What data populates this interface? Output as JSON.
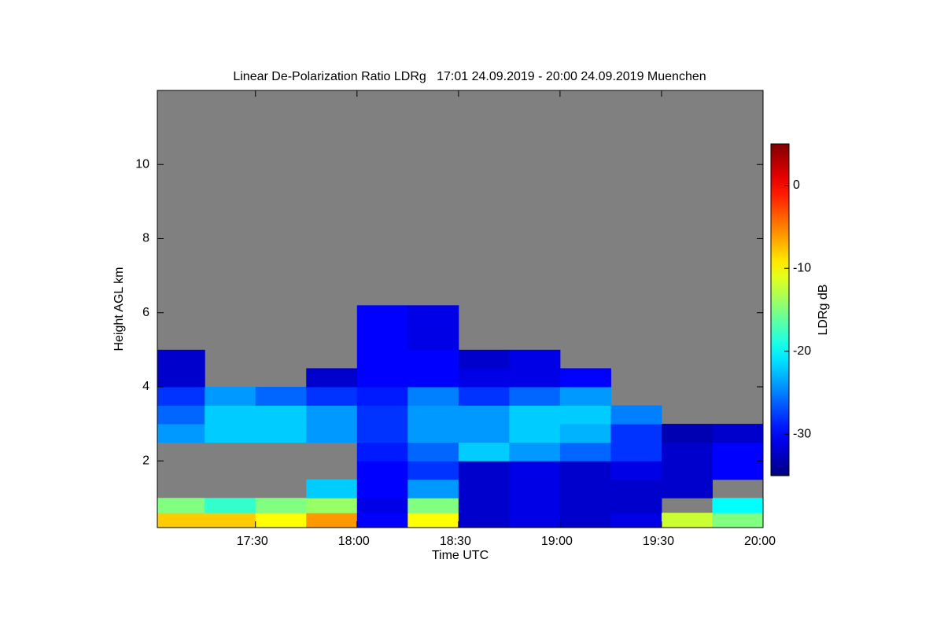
{
  "chart_data": {
    "type": "heatmap",
    "title": "Linear De-Polarization Ratio LDRg   17:01 24.09.2019 - 20:00 24.09.2019 Muenchen",
    "xlabel": "Time UTC",
    "ylabel": "Height AGL km",
    "colorbar_label": "LDRg dB",
    "colormap": "jet",
    "missing_color": "#808080",
    "xlim": [
      17.0167,
      20.0
    ],
    "xticks": [
      {
        "value": 17.5,
        "label": "17:30"
      },
      {
        "value": 18.0,
        "label": "18:00"
      },
      {
        "value": 18.5,
        "label": "18:30"
      },
      {
        "value": 19.0,
        "label": "19:00"
      },
      {
        "value": 19.5,
        "label": "19:30"
      },
      {
        "value": 20.0,
        "label": "20:00"
      }
    ],
    "ylim": [
      0.2,
      12.0
    ],
    "yticks": [
      2,
      4,
      6,
      8,
      10
    ],
    "clim": [
      -35,
      5
    ],
    "cticks": [
      0,
      -10,
      -20,
      -30
    ],
    "xbins": [
      17.0167,
      17.25,
      17.5,
      17.75,
      18.0,
      18.25,
      18.5,
      18.75,
      19.0,
      19.25,
      19.5,
      19.75,
      20.0
    ],
    "ybins": [
      0.2,
      0.6,
      1.0,
      1.5,
      2.0,
      2.5,
      3.0,
      3.5,
      4.0,
      4.5,
      5.0,
      5.5,
      6.2
    ],
    "z": [
      [
        -8,
        -8,
        -10,
        -6,
        -30,
        -10,
        -32,
        -31,
        -32,
        -31,
        -12,
        -15
      ],
      [
        -15,
        -18,
        -15,
        -14,
        -31,
        -15,
        -32,
        -31,
        -32,
        -32,
        null,
        -20
      ],
      [
        null,
        null,
        null,
        -22,
        -30,
        -24,
        -32,
        -31,
        -32,
        -32,
        -32,
        null
      ],
      [
        null,
        null,
        null,
        null,
        -30,
        -28,
        -32,
        -31,
        -32,
        -31,
        -32,
        -30
      ],
      [
        null,
        null,
        null,
        null,
        -29,
        -26,
        -22,
        -24,
        -26,
        -28,
        -32,
        -30
      ],
      [
        -24,
        -22,
        -22,
        -24,
        -28,
        -24,
        -24,
        -22,
        -23,
        -28,
        -33,
        -32
      ],
      [
        -26,
        -22,
        -22,
        -24,
        -28,
        -24,
        -24,
        -22,
        -22,
        -25,
        null,
        null
      ],
      [
        -28,
        -24,
        -26,
        -28,
        -29,
        -25,
        -28,
        -26,
        -24,
        null,
        null,
        null
      ],
      [
        -32,
        null,
        null,
        -32,
        -30,
        -30,
        -31,
        -31,
        -30,
        null,
        null,
        null
      ],
      [
        -32,
        null,
        null,
        null,
        -30,
        -30,
        -32,
        -31,
        null,
        null,
        null,
        null
      ],
      [
        null,
        null,
        null,
        null,
        -30,
        -31,
        null,
        null,
        null,
        null,
        null,
        null
      ],
      [
        null,
        null,
        null,
        null,
        -30,
        -31,
        null,
        null,
        null,
        null,
        null,
        null
      ]
    ]
  }
}
